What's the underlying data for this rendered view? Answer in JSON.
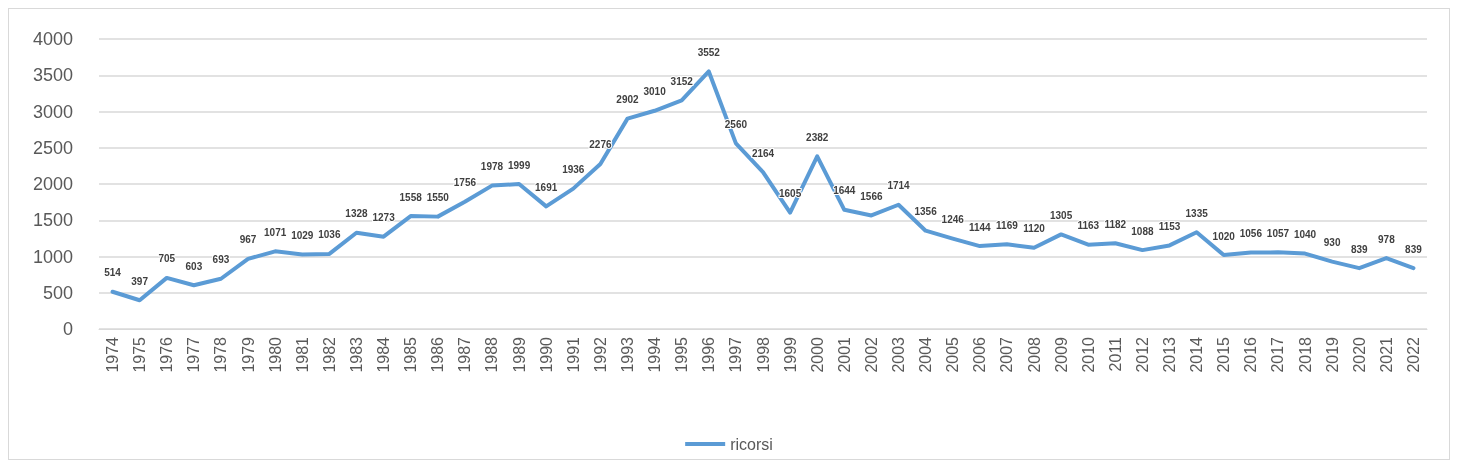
{
  "chart_data": {
    "type": "line",
    "categories": [
      "1974",
      "1975",
      "1976",
      "1977",
      "1978",
      "1979",
      "1980",
      "1981",
      "1982",
      "1983",
      "1984",
      "1985",
      "1986",
      "1987",
      "1988",
      "1989",
      "1990",
      "1991",
      "1992",
      "1993",
      "1994",
      "1995",
      "1996",
      "1997",
      "1998",
      "1999",
      "2000",
      "2001",
      "2002",
      "2003",
      "2004",
      "2005",
      "2006",
      "2007",
      "2008",
      "2009",
      "2010",
      "2011",
      "2012",
      "2013",
      "2014",
      "2015",
      "2016",
      "2017",
      "2018",
      "2019",
      "2020",
      "2021",
      "2022"
    ],
    "series": [
      {
        "name": "ricorsi",
        "color": "#5b9bd5",
        "values": [
          514,
          397,
          705,
          603,
          693,
          967,
          1071,
          1029,
          1036,
          1328,
          1273,
          1558,
          1550,
          1756,
          1978,
          1999,
          1691,
          1936,
          2276,
          2902,
          3010,
          3152,
          3552,
          2560,
          2164,
          1605,
          2382,
          1644,
          1566,
          1714,
          1356,
          1246,
          1144,
          1169,
          1120,
          1305,
          1163,
          1182,
          1088,
          1153,
          1335,
          1020,
          1056,
          1057,
          1040,
          930,
          839,
          978,
          839
        ]
      }
    ],
    "ylim": [
      0,
      4000
    ],
    "yticks": [
      0,
      500,
      1000,
      1500,
      2000,
      2500,
      3000,
      3500,
      4000
    ],
    "grid": "y",
    "legend": "bottom",
    "data_labels": true,
    "marker": "none",
    "line_style": "solid"
  }
}
